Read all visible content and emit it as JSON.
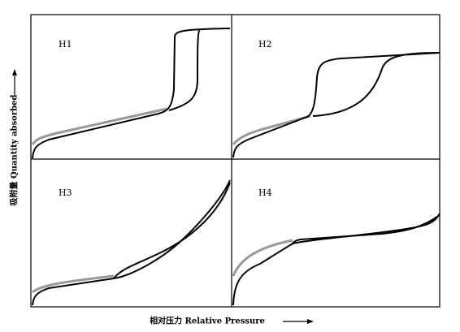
{
  "panels": [
    {
      "label": "H1"
    },
    {
      "label": "H2"
    },
    {
      "label": "H3"
    },
    {
      "label": "H4"
    }
  ],
  "y_axis_label": "吸附量 Quantity absorbed",
  "x_axis_label": "相对压力 Relative Pressure"
}
